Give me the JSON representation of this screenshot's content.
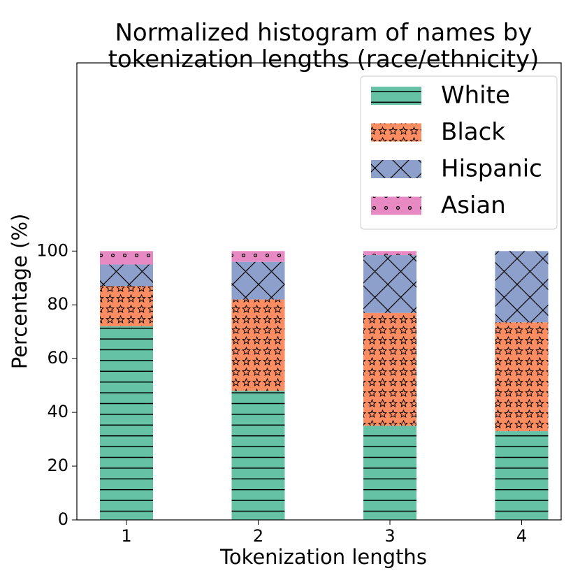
{
  "chart_data": {
    "type": "bar",
    "stacked": true,
    "title": "Normalized histogram of names by\ntokenization lengths (race/ethnicity)",
    "xlabel": "Tokenization lengths",
    "ylabel": "Percentage (%)",
    "categories": [
      "1",
      "2",
      "3",
      "4"
    ],
    "series": [
      {
        "name": "White",
        "color": "#66c2a5",
        "hatch": "-",
        "values": [
          72,
          48,
          35,
          33
        ]
      },
      {
        "name": "Black",
        "color": "#fc8d62",
        "hatch": "*",
        "values": [
          15,
          34,
          42,
          40.5
        ]
      },
      {
        "name": "Hispanic",
        "color": "#8da0cb",
        "hatch": "x",
        "values": [
          8,
          14,
          21.5,
          26.5
        ]
      },
      {
        "name": "Asian",
        "color": "#e78ac3",
        "hatch": ".",
        "values": [
          5,
          4,
          1.5,
          0
        ]
      }
    ],
    "ylim": [
      0,
      170
    ],
    "yticks": [
      0,
      20,
      40,
      60,
      80,
      100
    ],
    "legend": "upper right"
  }
}
